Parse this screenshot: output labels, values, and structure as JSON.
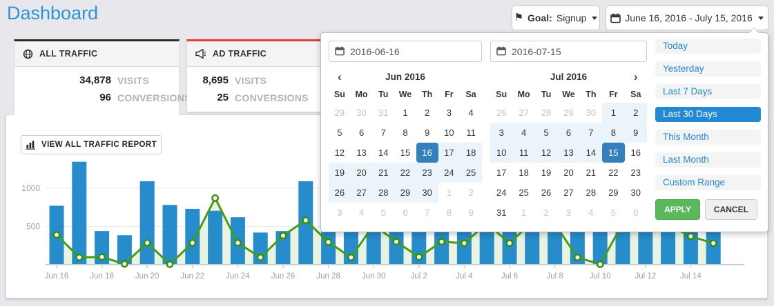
{
  "page": {
    "title": "Dashboard",
    "background_color": "#e8e8ec",
    "title_color": "#2d93d8"
  },
  "toolbar": {
    "goal": {
      "icon": "flag-icon",
      "label": "Goal:",
      "value": "Signup"
    },
    "date_range": {
      "icon": "calendar-icon",
      "label": "June 16, 2016 - July 15, 2016"
    }
  },
  "cards": [
    {
      "title": "ALL TRAFFIC",
      "icon": "globe-icon",
      "accent_color": "#2b2b2b",
      "rows": [
        {
          "value": "34,878",
          "label": "VISITS"
        },
        {
          "value": "96",
          "label": "CONVERSIONS"
        }
      ]
    },
    {
      "title": "AD TRAFFIC",
      "icon": "megaphone-icon",
      "accent_color": "#e03b3b",
      "rows": [
        {
          "value": "8,695",
          "label": "VISITS"
        },
        {
          "value": "25",
          "label": "CONVERSIONS"
        }
      ]
    }
  ],
  "report_button": {
    "label": "VIEW ALL TRAFFIC REPORT",
    "icon": "bar-chart-icon"
  },
  "daterangepicker": {
    "start_date": "2016-06-16",
    "end_date": "2016-07-15",
    "dow": [
      "Su",
      "Mo",
      "Tu",
      "We",
      "Th",
      "Fr",
      "Sa"
    ],
    "prev_icon": "‹",
    "next_icon": "›",
    "calendars": [
      {
        "title": "Jun 2016",
        "weeks": [
          [
            {
              "d": 29,
              "s": "muted"
            },
            {
              "d": 30,
              "s": "muted"
            },
            {
              "d": 31,
              "s": "muted"
            },
            {
              "d": 1,
              "s": ""
            },
            {
              "d": 2,
              "s": ""
            },
            {
              "d": 3,
              "s": ""
            },
            {
              "d": 4,
              "s": ""
            }
          ],
          [
            {
              "d": 5,
              "s": ""
            },
            {
              "d": 6,
              "s": ""
            },
            {
              "d": 7,
              "s": ""
            },
            {
              "d": 8,
              "s": ""
            },
            {
              "d": 9,
              "s": ""
            },
            {
              "d": 10,
              "s": ""
            },
            {
              "d": 11,
              "s": ""
            }
          ],
          [
            {
              "d": 12,
              "s": ""
            },
            {
              "d": 13,
              "s": ""
            },
            {
              "d": 14,
              "s": ""
            },
            {
              "d": 15,
              "s": ""
            },
            {
              "d": 16,
              "s": "active"
            },
            {
              "d": 17,
              "s": "range"
            },
            {
              "d": 18,
              "s": "range"
            }
          ],
          [
            {
              "d": 19,
              "s": "range"
            },
            {
              "d": 20,
              "s": "range"
            },
            {
              "d": 21,
              "s": "range"
            },
            {
              "d": 22,
              "s": "range"
            },
            {
              "d": 23,
              "s": "range"
            },
            {
              "d": 24,
              "s": "range"
            },
            {
              "d": 25,
              "s": "range"
            }
          ],
          [
            {
              "d": 26,
              "s": "range"
            },
            {
              "d": 27,
              "s": "range"
            },
            {
              "d": 28,
              "s": "range"
            },
            {
              "d": 29,
              "s": "range"
            },
            {
              "d": 30,
              "s": "range"
            },
            {
              "d": 1,
              "s": "muted"
            },
            {
              "d": 2,
              "s": "muted"
            }
          ],
          [
            {
              "d": 3,
              "s": "muted"
            },
            {
              "d": 4,
              "s": "muted"
            },
            {
              "d": 5,
              "s": "muted"
            },
            {
              "d": 6,
              "s": "muted"
            },
            {
              "d": 7,
              "s": "muted"
            },
            {
              "d": 8,
              "s": "muted"
            },
            {
              "d": 9,
              "s": "muted"
            }
          ]
        ]
      },
      {
        "title": "Jul 2016",
        "weeks": [
          [
            {
              "d": 26,
              "s": "muted"
            },
            {
              "d": 27,
              "s": "muted"
            },
            {
              "d": 28,
              "s": "muted"
            },
            {
              "d": 29,
              "s": "muted"
            },
            {
              "d": 30,
              "s": "muted"
            },
            {
              "d": 1,
              "s": "range"
            },
            {
              "d": 2,
              "s": "range"
            }
          ],
          [
            {
              "d": 3,
              "s": "range"
            },
            {
              "d": 4,
              "s": "range"
            },
            {
              "d": 5,
              "s": "range"
            },
            {
              "d": 6,
              "s": "range"
            },
            {
              "d": 7,
              "s": "range"
            },
            {
              "d": 8,
              "s": "range"
            },
            {
              "d": 9,
              "s": "range"
            }
          ],
          [
            {
              "d": 10,
              "s": "range"
            },
            {
              "d": 11,
              "s": "range"
            },
            {
              "d": 12,
              "s": "range"
            },
            {
              "d": 13,
              "s": "range"
            },
            {
              "d": 14,
              "s": "range"
            },
            {
              "d": 15,
              "s": "active"
            },
            {
              "d": 16,
              "s": ""
            }
          ],
          [
            {
              "d": 17,
              "s": ""
            },
            {
              "d": 18,
              "s": ""
            },
            {
              "d": 19,
              "s": ""
            },
            {
              "d": 20,
              "s": ""
            },
            {
              "d": 21,
              "s": ""
            },
            {
              "d": 22,
              "s": ""
            },
            {
              "d": 23,
              "s": ""
            }
          ],
          [
            {
              "d": 24,
              "s": ""
            },
            {
              "d": 25,
              "s": ""
            },
            {
              "d": 26,
              "s": ""
            },
            {
              "d": 27,
              "s": ""
            },
            {
              "d": 28,
              "s": ""
            },
            {
              "d": 29,
              "s": ""
            },
            {
              "d": 30,
              "s": ""
            }
          ],
          [
            {
              "d": 31,
              "s": ""
            },
            {
              "d": 1,
              "s": "muted"
            },
            {
              "d": 2,
              "s": "muted"
            },
            {
              "d": 3,
              "s": "muted"
            },
            {
              "d": 4,
              "s": "muted"
            },
            {
              "d": 5,
              "s": "muted"
            },
            {
              "d": 6,
              "s": "muted"
            }
          ]
        ]
      }
    ],
    "ranges": [
      {
        "label": "Today",
        "active": false
      },
      {
        "label": "Yesterday",
        "active": false
      },
      {
        "label": "Last 7 Days",
        "active": false
      },
      {
        "label": "Last 30 Days",
        "active": true
      },
      {
        "label": "This Month",
        "active": false
      },
      {
        "label": "Last Month",
        "active": false
      },
      {
        "label": "Custom Range",
        "active": false
      }
    ],
    "apply_label": "APPLY",
    "cancel_label": "CANCEL",
    "colors": {
      "selected_day": "#3380bd",
      "in_range": "#ebf4fa",
      "active_range_pill": "#2389d5",
      "apply_green": "#5cb85c"
    }
  },
  "chart_data": {
    "type": "bar",
    "title": "",
    "xlabel": "",
    "ylabel": "",
    "ylim": [
      0,
      1400
    ],
    "yticks": [
      500,
      1000
    ],
    "grid": true,
    "legend": "none",
    "x": [
      "Jun 16",
      "Jun 17",
      "Jun 18",
      "Jun 19",
      "Jun 20",
      "Jun 21",
      "Jun 22",
      "Jun 23",
      "Jun 24",
      "Jun 25",
      "Jun 26",
      "Jun 27",
      "Jun 28",
      "Jun 29",
      "Jun 30",
      "Jul 1",
      "Jul 2",
      "Jul 3",
      "Jul 4",
      "Jul 5",
      "Jul 6",
      "Jul 7",
      "Jul 8",
      "Jul 9",
      "Jul 10",
      "Jul 11",
      "Jul 12",
      "Jul 13",
      "Jul 14",
      "Jul 15"
    ],
    "x_tick_labels": [
      "Jun 16",
      "Jun 18",
      "Jun 20",
      "Jun 22",
      "Jun 24",
      "Jun 26",
      "Jun 28",
      "Jun 30",
      "Jul 2",
      "Jul 4",
      "Jul 6",
      "Jul 8",
      "Jul 10",
      "Jul 12",
      "Jul 14"
    ],
    "series": [
      {
        "name": "All Traffic visits",
        "type": "bar",
        "color": "#1b86c8",
        "values": [
          770,
          1345,
          440,
          385,
          1090,
          780,
          730,
          705,
          620,
          420,
          440,
          1090,
          900,
          1150,
          1250,
          1050,
          800,
          950,
          1100,
          1300,
          980,
          1250,
          1120,
          860,
          700,
          1200,
          1000,
          900,
          1150,
          980
        ]
      },
      {
        "name": "Ad Traffic visits",
        "type": "line",
        "color": "#429e16",
        "marker": "circle",
        "area_fill": "#eaf3df",
        "values": [
          390,
          95,
          100,
          10,
          285,
          5,
          285,
          870,
          285,
          95,
          380,
          580,
          295,
          95,
          520,
          300,
          100,
          300,
          280,
          540,
          280,
          560,
          530,
          95,
          5,
          540,
          560,
          520,
          370,
          280
        ]
      }
    ]
  }
}
